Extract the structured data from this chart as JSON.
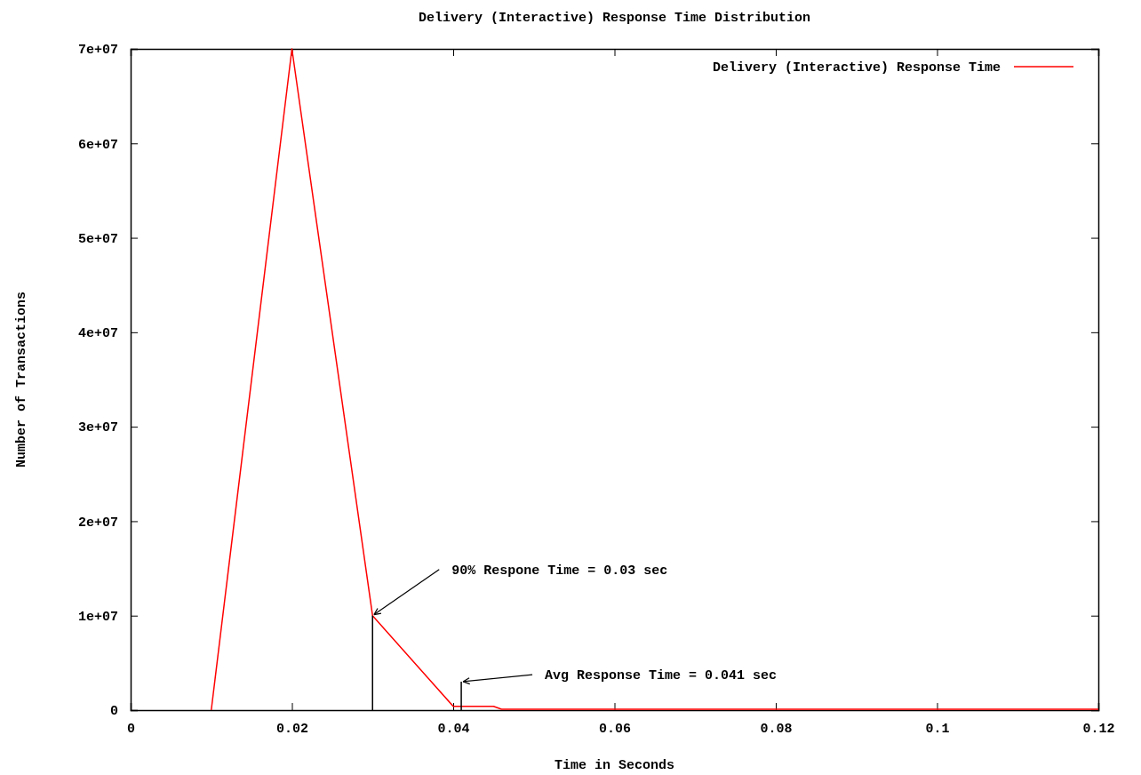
{
  "chart_data": {
    "type": "line",
    "title": "Delivery (Interactive) Response Time Distribution",
    "xlabel": "Time in Seconds",
    "ylabel": "Number of Transactions",
    "xlim": [
      0,
      0.12
    ],
    "xticks": [
      0,
      0.02,
      0.04,
      0.06,
      0.08,
      0.1,
      0.12
    ],
    "ylim": [
      0,
      70000000
    ],
    "yticks": [
      {
        "value": 0,
        "label": "0"
      },
      {
        "value": 10000000,
        "label": "1e+07"
      },
      {
        "value": 20000000,
        "label": "2e+07"
      },
      {
        "value": 30000000,
        "label": "3e+07"
      },
      {
        "value": 40000000,
        "label": "4e+07"
      },
      {
        "value": 50000000,
        "label": "5e+07"
      },
      {
        "value": 60000000,
        "label": "6e+07"
      },
      {
        "value": 70000000,
        "label": "7e+07"
      }
    ],
    "series": [
      {
        "name": "Delivery (Interactive) Response Time",
        "color": "#ff0000",
        "x": [
          0.01,
          0.02,
          0.03,
          0.04,
          0.045,
          0.046,
          0.12
        ],
        "values": [
          0,
          70000000,
          10000000,
          400000,
          400000,
          100000,
          100000
        ]
      },
      {
        "color": "#000000",
        "x": [
          0.03,
          0.03
        ],
        "values": [
          0,
          10000000
        ]
      },
      {
        "color": "#000000",
        "x": [
          0.041,
          0.041
        ],
        "values": [
          0,
          3000000
        ]
      }
    ],
    "annotations": [
      {
        "text": "90% Respone Time = 0.03 sec",
        "x": 0.03,
        "y": 10000000
      },
      {
        "text": "Avg Response Time = 0.041 sec",
        "x": 0.041,
        "y": 3000000
      }
    ],
    "legend": "top right",
    "grid": false,
    "line_style": "solid",
    "marker": "none"
  }
}
